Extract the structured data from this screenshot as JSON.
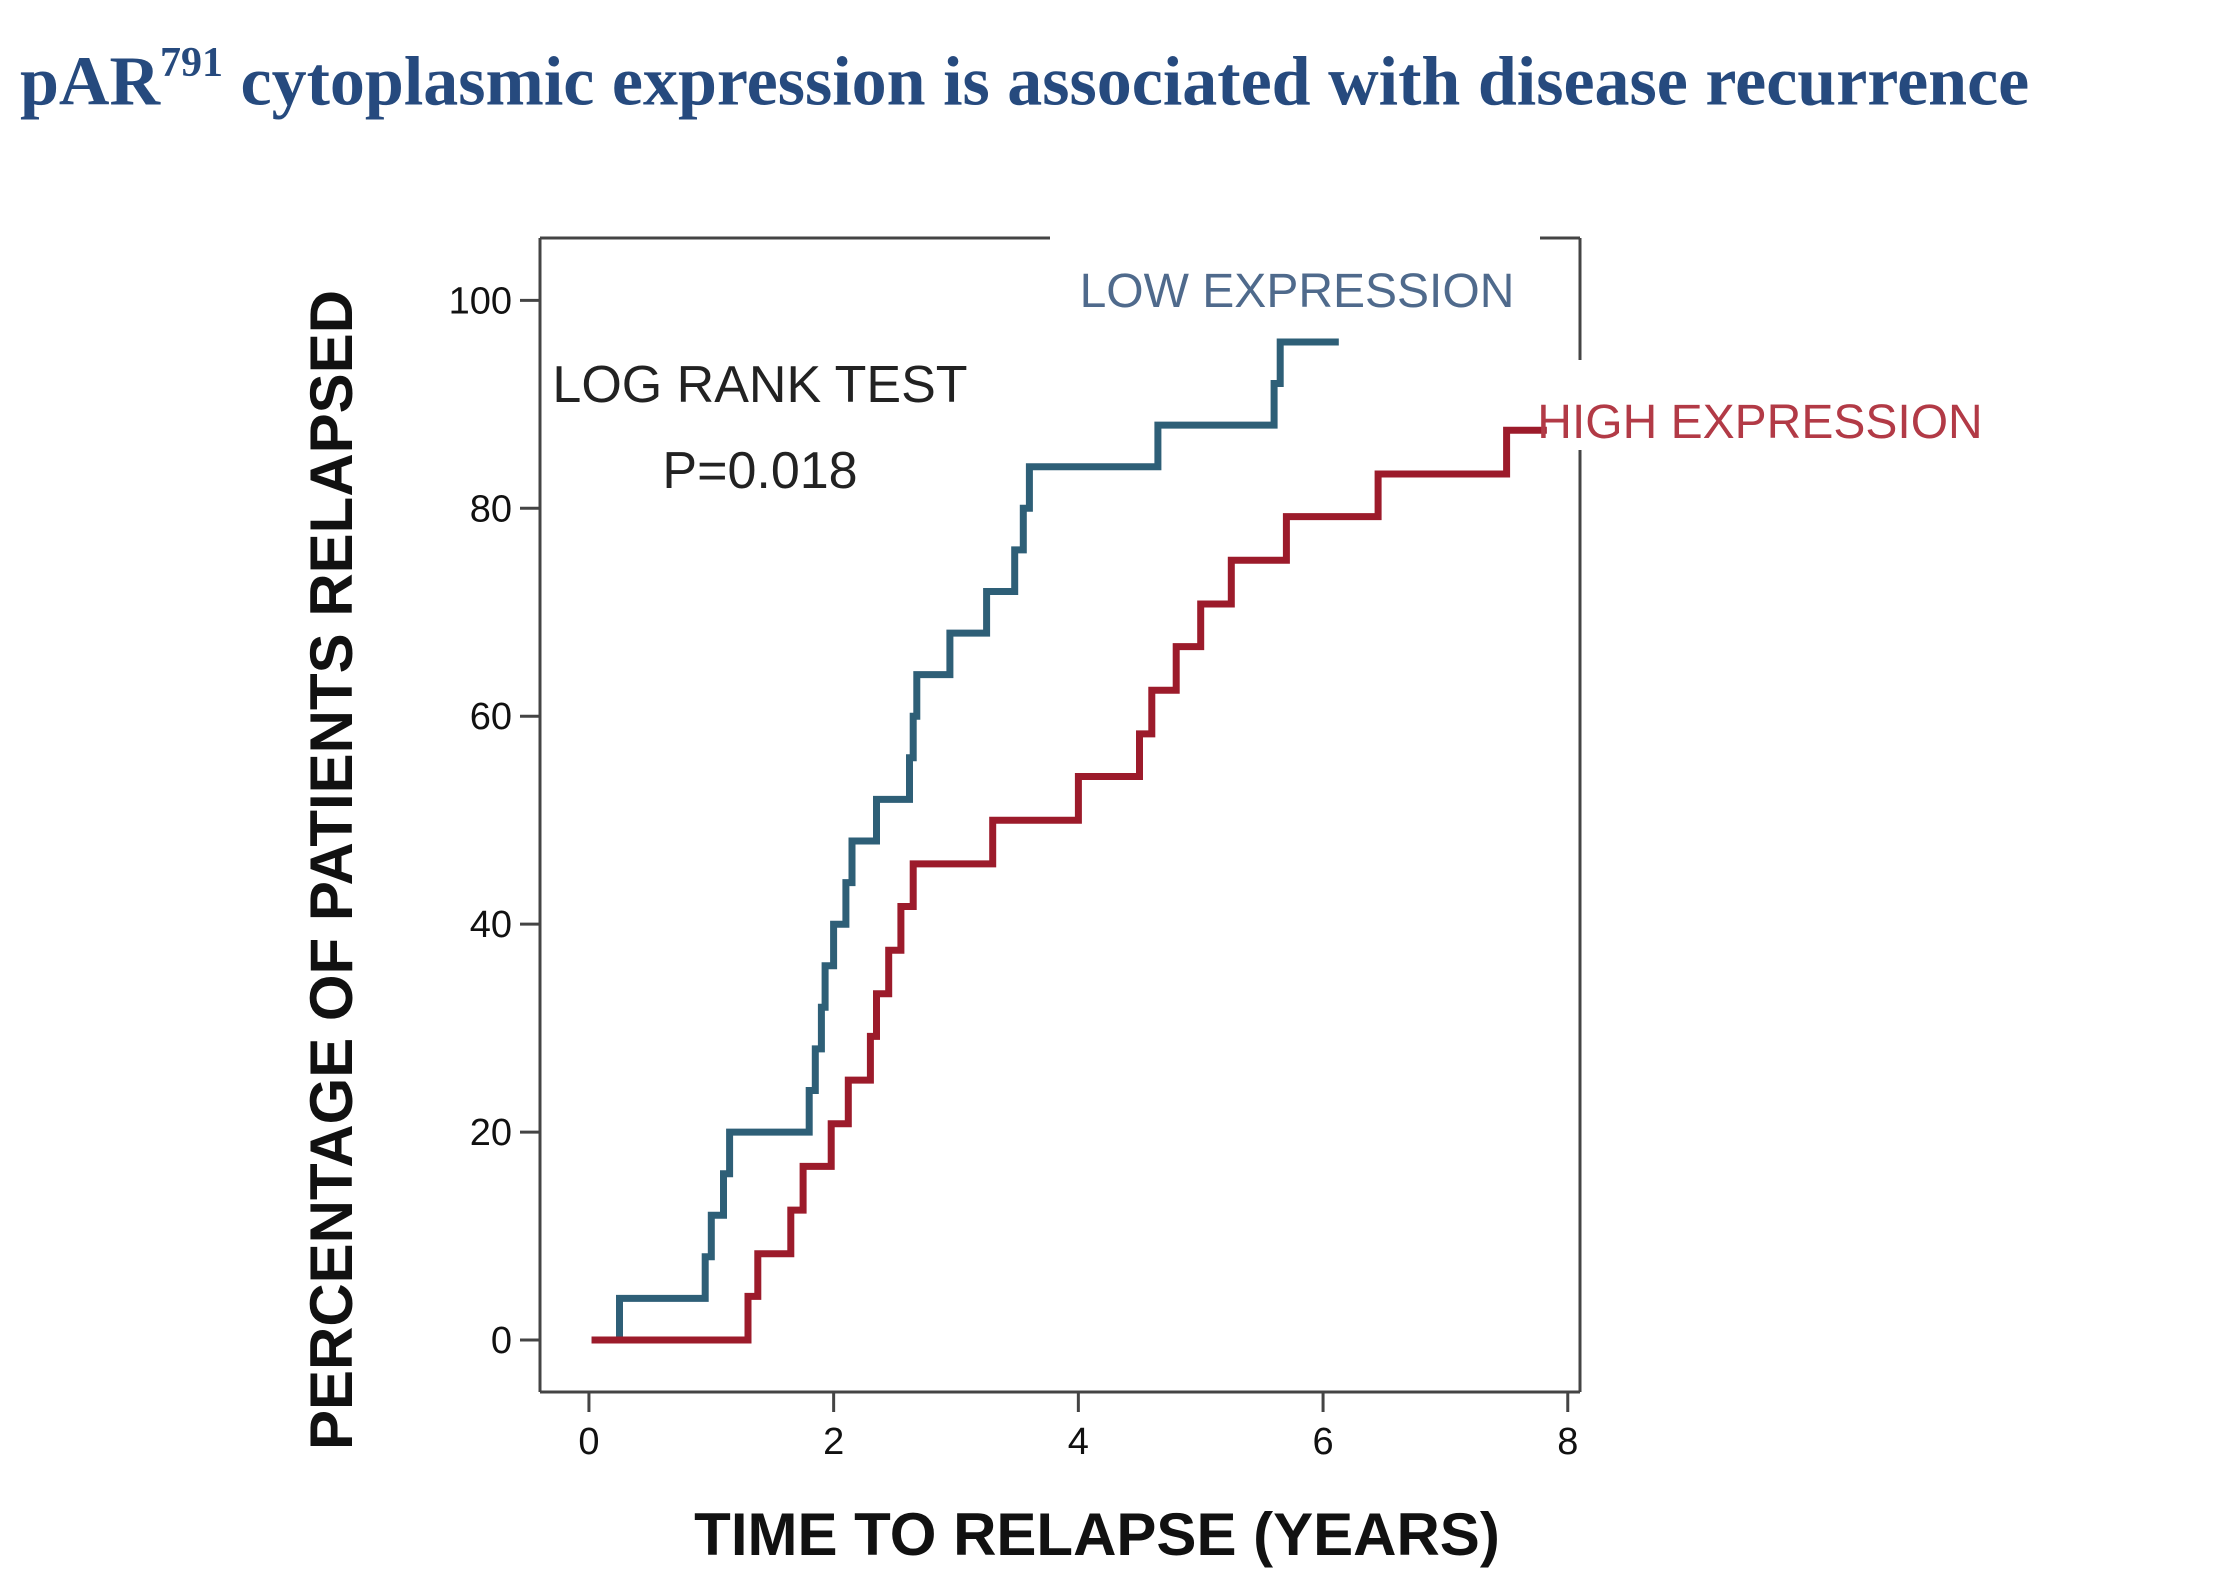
{
  "title": {
    "main": "pAR",
    "superscript": "791",
    "rest": " cytoplasmic expression is associated with disease recurrence",
    "color": "#264a7e"
  },
  "chart_data": {
    "type": "line",
    "subtype": "kaplan-meier-step",
    "title": "pAR791 cytoplasmic expression is associated with disease recurrence",
    "xlabel": "TIME TO RELAPSE (YEARS)",
    "ylabel": "PERCENTAGE OF PATIENTS RELAPSED",
    "xlim": [
      -0.4,
      8.1
    ],
    "ylim": [
      -5,
      106
    ],
    "xticks": [
      0,
      2,
      4,
      6,
      8
    ],
    "yticks": [
      0,
      20,
      40,
      60,
      80,
      100
    ],
    "grid": false,
    "legend_position": "inline-right",
    "annotation": {
      "line1": "LOG RANK TEST",
      "line2": "P=0.018"
    },
    "series": [
      {
        "name": "LOW EXPRESSION",
        "color": "#2e5f77",
        "label_color": "#4f6a8c",
        "points": [
          [
            0.05,
            0
          ],
          [
            0.25,
            0
          ],
          [
            0.25,
            4
          ],
          [
            0.95,
            4
          ],
          [
            0.95,
            8
          ],
          [
            1.0,
            8
          ],
          [
            1.0,
            12
          ],
          [
            1.1,
            12
          ],
          [
            1.1,
            16
          ],
          [
            1.15,
            16
          ],
          [
            1.15,
            20
          ],
          [
            1.8,
            20
          ],
          [
            1.8,
            24
          ],
          [
            1.85,
            24
          ],
          [
            1.85,
            28
          ],
          [
            1.9,
            28
          ],
          [
            1.9,
            32
          ],
          [
            1.93,
            32
          ],
          [
            1.93,
            36
          ],
          [
            2.0,
            36
          ],
          [
            2.0,
            40
          ],
          [
            2.1,
            40
          ],
          [
            2.1,
            44
          ],
          [
            2.15,
            44
          ],
          [
            2.15,
            48
          ],
          [
            2.35,
            48
          ],
          [
            2.35,
            52
          ],
          [
            2.62,
            52
          ],
          [
            2.62,
            56
          ],
          [
            2.65,
            56
          ],
          [
            2.65,
            60
          ],
          [
            2.68,
            60
          ],
          [
            2.68,
            64
          ],
          [
            2.95,
            64
          ],
          [
            2.95,
            68
          ],
          [
            3.25,
            68
          ],
          [
            3.25,
            72
          ],
          [
            3.48,
            72
          ],
          [
            3.48,
            76
          ],
          [
            3.55,
            76
          ],
          [
            3.55,
            80
          ],
          [
            3.6,
            80
          ],
          [
            3.6,
            84
          ],
          [
            4.65,
            84
          ],
          [
            4.65,
            88
          ],
          [
            5.6,
            88
          ],
          [
            5.6,
            92
          ],
          [
            5.65,
            92
          ],
          [
            5.65,
            96
          ],
          [
            6.1,
            96
          ]
        ]
      },
      {
        "name": "HIGH EXPRESSION",
        "color": "#9c1b2b",
        "label_color": "#b23a46",
        "points": [
          [
            0.05,
            0
          ],
          [
            1.3,
            0
          ],
          [
            1.3,
            4.2
          ],
          [
            1.38,
            4.2
          ],
          [
            1.38,
            8.3
          ],
          [
            1.65,
            8.3
          ],
          [
            1.65,
            12.5
          ],
          [
            1.75,
            12.5
          ],
          [
            1.75,
            16.7
          ],
          [
            1.98,
            16.7
          ],
          [
            1.98,
            20.8
          ],
          [
            2.12,
            20.8
          ],
          [
            2.12,
            25
          ],
          [
            2.3,
            25
          ],
          [
            2.3,
            29.2
          ],
          [
            2.35,
            29.2
          ],
          [
            2.35,
            33.3
          ],
          [
            2.45,
            33.3
          ],
          [
            2.45,
            37.5
          ],
          [
            2.55,
            37.5
          ],
          [
            2.55,
            41.7
          ],
          [
            2.65,
            41.7
          ],
          [
            2.65,
            45.8
          ],
          [
            3.3,
            45.8
          ],
          [
            3.3,
            50
          ],
          [
            4.0,
            50
          ],
          [
            4.0,
            54.2
          ],
          [
            4.5,
            54.2
          ],
          [
            4.5,
            58.3
          ],
          [
            4.6,
            58.3
          ],
          [
            4.6,
            62.5
          ],
          [
            4.8,
            62.5
          ],
          [
            4.8,
            66.7
          ],
          [
            5.0,
            66.7
          ],
          [
            5.0,
            70.8
          ],
          [
            5.25,
            70.8
          ],
          [
            5.25,
            75
          ],
          [
            5.7,
            75
          ],
          [
            5.7,
            79.2
          ],
          [
            6.45,
            79.2
          ],
          [
            6.45,
            83.3
          ],
          [
            7.5,
            83.3
          ],
          [
            7.5,
            87.5
          ],
          [
            7.8,
            87.5
          ]
        ]
      }
    ]
  }
}
